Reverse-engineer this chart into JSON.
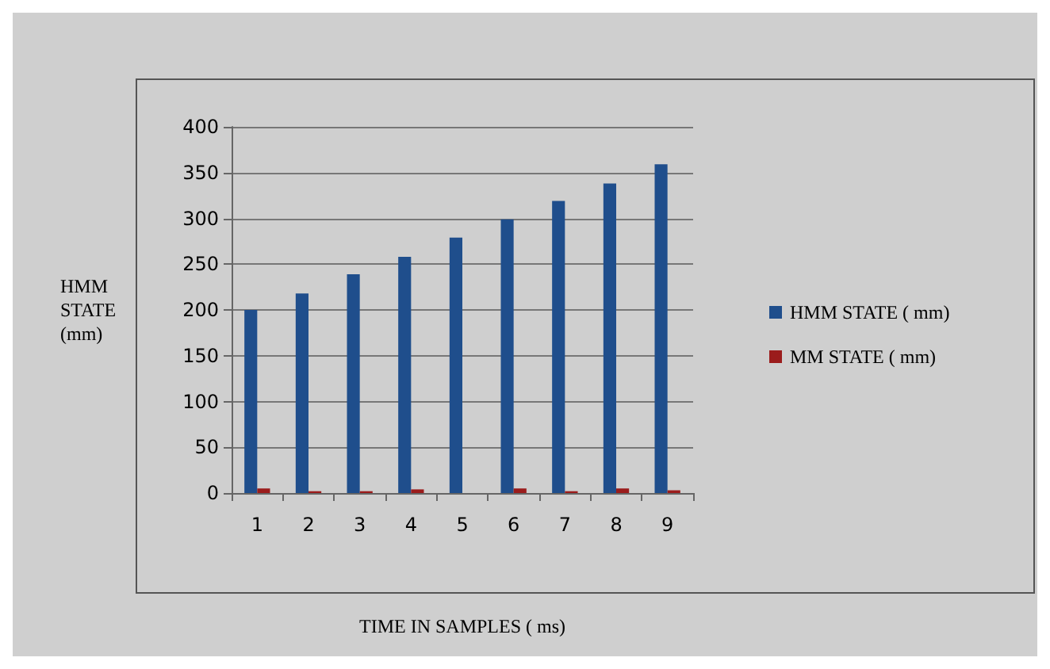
{
  "chart_data": {
    "type": "bar",
    "xlabel": "TIME IN SAMPLES ( ms)",
    "ylabel": "HMM STATE (mm)",
    "categories": [
      "1",
      "2",
      "3",
      "4",
      "5",
      "6",
      "7",
      "8",
      "9"
    ],
    "series": [
      {
        "name": "HMM STATE ( mm)",
        "color": "#1f4e8c",
        "values": [
          200,
          218,
          239,
          258,
          279,
          299,
          319,
          338,
          359
        ]
      },
      {
        "name": "MM STATE ( mm)",
        "color": "#9b1c1c",
        "values": [
          5,
          2,
          2,
          4,
          0,
          5,
          2,
          5,
          3
        ]
      }
    ],
    "ylim": [
      0,
      400
    ],
    "yticks": [
      0,
      50,
      100,
      150,
      200,
      250,
      300,
      350,
      400
    ],
    "grid": "y",
    "legend": "right"
  }
}
